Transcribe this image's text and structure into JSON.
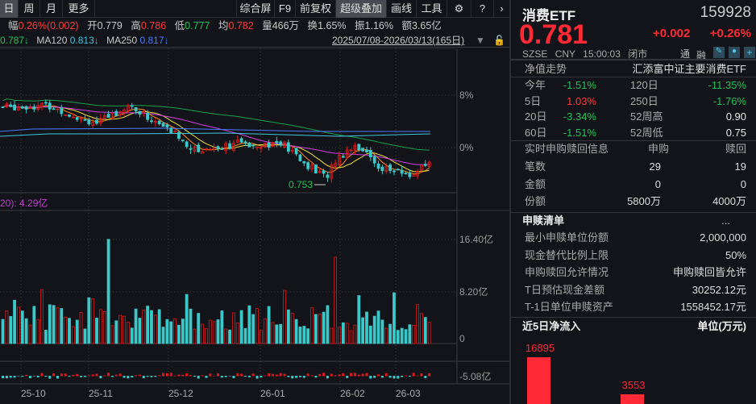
{
  "toolbar": {
    "left": [
      "日",
      "周",
      "月",
      "更多"
    ],
    "right": [
      "综合屏",
      "F9",
      "前复权",
      "超级叠加",
      "画线",
      "工具"
    ]
  },
  "info": {
    "change_label": "幅",
    "change": "0.26%(0.002)",
    "open_label": "开",
    "open": "0.779",
    "high_label": "高",
    "high": "0.786",
    "low_label": "低",
    "low": "0.777",
    "avg_label": "均",
    "avg": "0.782",
    "vol_label": "量",
    "vol": "466万",
    "turn_label": "换",
    "turn": "1.65%",
    "amp_label": "振",
    "amp": "1.16%",
    "amt_label": "额",
    "amt": "3.65亿"
  },
  "ma": {
    "ma60": "0.787↓",
    "ma120_label": "MA120",
    "ma120": "0.813↓",
    "ma250_label": "MA250",
    "ma250": "0.817↓",
    "range": "2025/07/08-2026/03/13(165日)"
  },
  "chart": {
    "price_axis": [
      "8%",
      "0%"
    ],
    "low_marker": "0.753",
    "vol_title": "20): 4.29亿",
    "vol_axis": [
      "16.40亿",
      "8.20亿",
      "0"
    ],
    "macd_axis": "-5.08亿",
    "dates": [
      "25-10",
      "25-11",
      "25-12",
      "26-01",
      "26-02",
      "26-03"
    ],
    "price_anchors": [
      [
        0,
        6.2
      ],
      [
        54,
        6.5
      ],
      [
        120,
        3.7
      ],
      [
        157,
        6.5
      ],
      [
        181,
        4.7
      ],
      [
        217,
        2.0
      ],
      [
        241,
        -0.5
      ],
      [
        289,
        0.6
      ],
      [
        349,
        0.6
      ],
      [
        373,
        -2.1
      ],
      [
        402,
        -4.6
      ],
      [
        416,
        -1.7
      ],
      [
        440,
        0.6
      ],
      [
        470,
        -3.0
      ],
      [
        506,
        -4.2
      ],
      [
        534,
        -2.5
      ]
    ]
  },
  "quote": {
    "name": "消费ETF",
    "code": "159928",
    "price": "0.781",
    "change": "+0.002",
    "change_pct": "+0.26%",
    "exchange": "SZSE",
    "currency": "CNY",
    "time": "15:00:03",
    "status": "闭市",
    "tag1": "通",
    "tag2": "融"
  },
  "nav": {
    "title": "净值走势",
    "fund": "汇添富中证主要消费ETF",
    "rows": [
      {
        "l": "今年",
        "v": "-1.51%",
        "c": "green",
        "l2": "120日",
        "v2": "-11.35%",
        "c2": "green"
      },
      {
        "l": "5日",
        "v": "1.03%",
        "c": "red",
        "l2": "250日",
        "v2": "-1.76%",
        "c2": "green"
      },
      {
        "l": "20日",
        "v": "-3.34%",
        "c": "green",
        "l2": "52周高",
        "v2": "0.90",
        "c2": "white"
      },
      {
        "l": "60日",
        "v": "-1.51%",
        "c": "green",
        "l2": "52周低",
        "v2": "0.75",
        "c2": "white"
      }
    ]
  },
  "subred": {
    "title": "实时申购赎回信息",
    "col1": "申购",
    "col2": "赎回",
    "rows": [
      {
        "l": "笔数",
        "a": "29",
        "b": "19"
      },
      {
        "l": "金额",
        "a": "0",
        "b": "0"
      },
      {
        "l": "份额",
        "a": "5800万",
        "b": "4000万"
      }
    ]
  },
  "list": {
    "title": "申赎清单",
    "more": "...",
    "rows": [
      {
        "l": "最小申赎单位份额",
        "v": "2,000,000"
      },
      {
        "l": "现金替代比例上限",
        "v": "50%"
      },
      {
        "l": "申购赎回允许情况",
        "v": "申购赎回皆允许"
      },
      {
        "l": "T日预估现金差额",
        "v": "30252.12元"
      },
      {
        "l": "T-1日单位申赎资产",
        "v": "1558452.17元"
      }
    ]
  },
  "flow": {
    "title": "近5日净流入",
    "unit": "单位(万元)",
    "bars": [
      16895,
      0,
      3553
    ],
    "labels": [
      "16895",
      "",
      "3553"
    ]
  },
  "colors": {
    "up": "#e01a1a",
    "down": "#3cc8c8",
    "accent": "#ff2a35"
  }
}
